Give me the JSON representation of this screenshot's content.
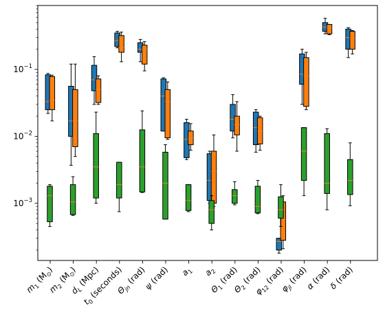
{
  "chart_data": {
    "type": "boxplot",
    "title": "",
    "xlabel": "",
    "ylabel": "",
    "yscale": "log",
    "ylim": [
      0.00014,
      0.9
    ],
    "y_tick_labels": [
      {
        "value": 0.001,
        "label": "10",
        "exp": "−3"
      },
      {
        "value": 0.01,
        "label": "10",
        "exp": "−2"
      },
      {
        "value": 0.1,
        "label": "10",
        "exp": "−1"
      }
    ],
    "categories": [
      {
        "base": "m",
        "sub": "1",
        "post": " (M",
        "sub2": "⊙",
        "tail": ")"
      },
      {
        "base": "m",
        "sub": "2",
        "post": " (M",
        "sub2": "⊙",
        "tail": ")"
      },
      {
        "base": "d",
        "sub": "L",
        "post": " (Mpc)"
      },
      {
        "base": "t",
        "sub": "0",
        "post": " (seconds)"
      },
      {
        "base": "Θ",
        "sub": "jn",
        "post": " (rad)"
      },
      {
        "base": "ψ",
        "sub": "",
        "post": " (rad)"
      },
      {
        "base": "a",
        "sub": "1",
        "post": ""
      },
      {
        "base": "a",
        "sub": "2",
        "post": ""
      },
      {
        "base": "Θ",
        "sub": "1",
        "post": " (rad)"
      },
      {
        "base": "Θ",
        "sub": "2",
        "post": " (rad)"
      },
      {
        "base": "φ",
        "sub": "12",
        "post": " (rad)"
      },
      {
        "base": "φ",
        "sub": "jl",
        "post": " (rad)"
      },
      {
        "base": "α",
        "sub": "",
        "post": " (rad)"
      },
      {
        "base": "δ",
        "sub": "",
        "post": " (rad)"
      }
    ],
    "colors": {
      "blue": "#1f77b4",
      "orange": "#ff7f0e",
      "green": "#2ca02c",
      "median": "#ff7f0e"
    },
    "boxes": [
      {
        "cat": 0,
        "color": "blue",
        "whislo": 0.022,
        "q1": 0.025,
        "med": 0.033,
        "q3": 0.083,
        "whishi": 0.087
      },
      {
        "cat": 0,
        "color": "orange",
        "whislo": 0.017,
        "q1": 0.025,
        "med": 0.035,
        "q3": 0.078,
        "whishi": 0.082
      },
      {
        "cat": 0,
        "color": "green",
        "whislo": 0.00045,
        "q1": 0.00053,
        "med": 0.0013,
        "q3": 0.0018,
        "whishi": 0.0019
      },
      {
        "cat": 1,
        "color": "blue",
        "whislo": 0.0037,
        "q1": 0.01,
        "med": 0.017,
        "q3": 0.056,
        "whishi": 0.12
      },
      {
        "cat": 1,
        "color": "orange",
        "whislo": 0.005,
        "q1": 0.007,
        "med": 0.017,
        "q3": 0.05,
        "whishi": 0.12
      },
      {
        "cat": 1,
        "color": "green",
        "whislo": 0.00066,
        "q1": 0.00068,
        "med": 0.00105,
        "q3": 0.0019,
        "whishi": 0.0025
      },
      {
        "cat": 2,
        "color": "blue",
        "whislo": 0.03,
        "q1": 0.048,
        "med": 0.07,
        "q3": 0.115,
        "whishi": 0.155
      },
      {
        "cat": 2,
        "color": "orange",
        "whislo": 0.03,
        "q1": 0.032,
        "med": 0.05,
        "q3": 0.072,
        "whishi": 0.08
      },
      {
        "cat": 2,
        "color": "green",
        "whislo": 0.001,
        "q1": 0.0012,
        "med": 0.0035,
        "q3": 0.011,
        "whishi": 0.023
      },
      {
        "cat": 3,
        "color": "blue",
        "whislo": 0.21,
        "q1": 0.22,
        "med": 0.27,
        "q3": 0.35,
        "whishi": 0.37
      },
      {
        "cat": 3,
        "color": "orange",
        "whislo": 0.13,
        "q1": 0.18,
        "med": 0.21,
        "q3": 0.32,
        "whishi": 0.36
      },
      {
        "cat": 3,
        "color": "green",
        "whislo": 0.00075,
        "q1": 0.0012,
        "med": 0.0019,
        "q3": 0.0041,
        "whishi": 0.0041
      },
      {
        "cat": 4,
        "color": "blue",
        "whislo": 0.13,
        "q1": 0.18,
        "med": 0.2,
        "q3": 0.25,
        "whishi": 0.28
      },
      {
        "cat": 4,
        "color": "orange",
        "whislo": 0.095,
        "q1": 0.12,
        "med": 0.2,
        "q3": 0.23,
        "whishi": 0.26
      },
      {
        "cat": 4,
        "color": "green",
        "whislo": 0.00145,
        "q1": 0.00148,
        "med": 0.0035,
        "q3": 0.0125,
        "whishi": 0.024
      },
      {
        "cat": 5,
        "color": "blue",
        "whislo": 0.012,
        "q1": 0.012,
        "med": 0.04,
        "q3": 0.072,
        "whishi": 0.075
      },
      {
        "cat": 5,
        "color": "orange",
        "whislo": 0.009,
        "q1": 0.0095,
        "med": 0.033,
        "q3": 0.05,
        "whishi": 0.065
      },
      {
        "cat": 5,
        "color": "green",
        "whislo": 0.00058,
        "q1": 0.00058,
        "med": 0.002,
        "q3": 0.0058,
        "whishi": 0.0075
      },
      {
        "cat": 6,
        "color": "blue",
        "whislo": 0.0045,
        "q1": 0.0048,
        "med": 0.009,
        "q3": 0.016,
        "whishi": 0.018
      },
      {
        "cat": 6,
        "color": "orange",
        "whislo": 0.0062,
        "q1": 0.0075,
        "med": 0.0095,
        "q3": 0.012,
        "whishi": 0.0155
      },
      {
        "cat": 6,
        "color": "green",
        "whislo": 0.00075,
        "q1": 0.00078,
        "med": 0.0011,
        "q3": 0.0019,
        "whishi": 0.0019
      },
      {
        "cat": 7,
        "color": "blue",
        "whislo": 0.001,
        "q1": 0.0011,
        "med": 0.0022,
        "q3": 0.0055,
        "whishi": 0.006
      },
      {
        "cat": 7,
        "color": "orange",
        "whislo": 0.0009,
        "q1": 0.001,
        "med": 0.003,
        "q3": 0.006,
        "whishi": 0.0105
      },
      {
        "cat": 7,
        "color": "green",
        "whislo": 0.0004,
        "q1": 0.0005,
        "med": 0.0008,
        "q3": 0.0011,
        "whishi": 0.0013
      },
      {
        "cat": 8,
        "color": "blue",
        "whislo": 0.0095,
        "q1": 0.012,
        "med": 0.018,
        "q3": 0.03,
        "whishi": 0.042
      },
      {
        "cat": 8,
        "color": "orange",
        "whislo": 0.006,
        "q1": 0.0105,
        "med": 0.015,
        "q3": 0.02,
        "whishi": 0.033
      },
      {
        "cat": 8,
        "color": "green",
        "whislo": 0.00095,
        "q1": 0.001,
        "med": 0.0013,
        "q3": 0.0016,
        "whishi": 0.0021
      },
      {
        "cat": 9,
        "color": "blue",
        "whislo": 0.0058,
        "q1": 0.0075,
        "med": 0.0135,
        "q3": 0.023,
        "whishi": 0.025
      },
      {
        "cat": 9,
        "color": "orange",
        "whislo": 0.0062,
        "q1": 0.0077,
        "med": 0.012,
        "q3": 0.019,
        "whishi": 0.02
      },
      {
        "cat": 9,
        "color": "green",
        "whislo": 0.0007,
        "q1": 0.00072,
        "med": 0.0009,
        "q3": 0.0018,
        "whishi": 0.0022
      },
      {
        "cat": 10,
        "color": "blue",
        "whislo": 0.00018,
        "q1": 0.0002,
        "med": 0.00027,
        "q3": 0.0003,
        "whishi": 0.0003
      },
      {
        "cat": 10,
        "color": "orange",
        "whislo": 0.00021,
        "q1": 0.00028,
        "med": 0.00057,
        "q3": 0.00105,
        "whishi": 0.0013
      },
      {
        "cat": 10,
        "color": "green",
        "whislo": 0.00045,
        "q1": 0.0006,
        "med": 0.0008,
        "q3": 0.00125,
        "whishi": 0.0019
      },
      {
        "cat": 11,
        "color": "blue",
        "whislo": 0.03,
        "q1": 0.06,
        "med": 0.085,
        "q3": 0.17,
        "whishi": 0.2
      },
      {
        "cat": 11,
        "color": "orange",
        "whislo": 0.025,
        "q1": 0.028,
        "med": 0.08,
        "q3": 0.15,
        "whishi": 0.18
      },
      {
        "cat": 11,
        "color": "green",
        "whislo": 0.0013,
        "q1": 0.0022,
        "med": 0.006,
        "q3": 0.0135,
        "whishi": 0.0135
      },
      {
        "cat": 12,
        "color": "blue",
        "whislo": 0.34,
        "q1": 0.37,
        "med": 0.43,
        "q3": 0.5,
        "whishi": 0.58
      },
      {
        "cat": 12,
        "color": "orange",
        "whislo": 0.33,
        "q1": 0.34,
        "med": 0.42,
        "q3": 0.47,
        "whishi": 0.47
      },
      {
        "cat": 12,
        "color": "green",
        "whislo": 0.0008,
        "q1": 0.0014,
        "med": 0.002,
        "q3": 0.011,
        "whishi": 0.013
      },
      {
        "cat": 13,
        "color": "blue",
        "whislo": 0.15,
        "q1": 0.2,
        "med": 0.3,
        "q3": 0.4,
        "whishi": 0.42
      },
      {
        "cat": 13,
        "color": "orange",
        "whislo": 0.17,
        "q1": 0.2,
        "med": 0.29,
        "q3": 0.37,
        "whishi": 0.38
      },
      {
        "cat": 13,
        "color": "green",
        "whislo": 0.00092,
        "q1": 0.00135,
        "med": 0.0022,
        "q3": 0.0045,
        "whishi": 0.008
      }
    ]
  }
}
